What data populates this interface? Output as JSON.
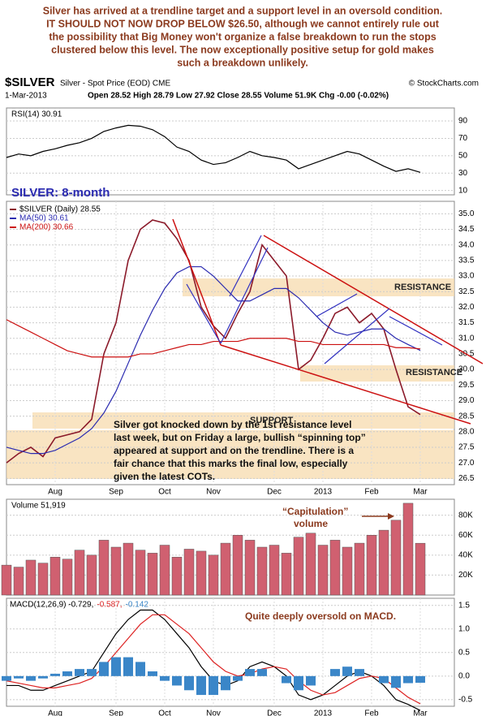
{
  "annotation": [
    "Silver has arrived at a trendline target and a support level in an oversold condition.",
    "IT SHOULD NOT NOW DROP BELOW $26.50, although we cannot entirely rule out",
    "the possibility that Big Money won't organize a false breakdown to run the stops",
    "clustered below this level. The now exceptionally positive setup for gold makes",
    "such a breakdown unlikely."
  ],
  "chart_header": {
    "symbol": "$SILVER",
    "name": "Silver - Spot Price (EOD) CME",
    "credit": "© StockCharts.com",
    "date": "1-Mar-2013",
    "quote": "Open 28.52 High 28.79 Low 27.92 Close 28.55 Volume 51.9K Chg -0.00 (-0.02%)"
  },
  "chart_data": [
    {
      "type": "line",
      "ylim": [
        5,
        105
      ],
      "yticks": [
        10,
        30,
        50,
        70,
        90
      ],
      "grid": true,
      "series": [
        {
          "name": "RSI(14) 30.91",
          "color": "#000000",
          "values": [
            48,
            52,
            50,
            55,
            58,
            62,
            65,
            70,
            78,
            82,
            85,
            84,
            80,
            72,
            60,
            55,
            45,
            40,
            42,
            48,
            55,
            50,
            48,
            45,
            35,
            40,
            45,
            50,
            55,
            52,
            45,
            38,
            32,
            35,
            30.91
          ]
        }
      ]
    },
    {
      "type": "line",
      "title": "SILVER: 8-month",
      "ylim": [
        26.3,
        35.4
      ],
      "yticks": [
        {
          "value": 26.5,
          "label": "26.5"
        },
        {
          "value": 27,
          "label": "27.0"
        },
        27.5,
        {
          "value": 28,
          "label": "28.0"
        },
        28.5,
        {
          "value": 29,
          "label": "29.0"
        },
        29.5,
        {
          "value": 30,
          "label": "30.0"
        },
        30.5,
        {
          "value": 31,
          "label": "31.0"
        },
        31.5,
        {
          "value": 32,
          "label": "32.0"
        },
        32.5,
        {
          "value": 33,
          "label": "33.0"
        },
        33.5,
        {
          "value": 34,
          "label": "34.0"
        },
        34.5,
        {
          "value": 35,
          "label": "35.0"
        }
      ],
      "grid": true,
      "categories": [
        null,
        null,
        null,
        null,
        "Aug",
        null,
        null,
        null,
        null,
        "Sep",
        null,
        null,
        null,
        "Oct",
        null,
        null,
        null,
        "Nov",
        null,
        null,
        null,
        null,
        "Dec",
        null,
        null,
        null,
        "2013",
        null,
        null,
        null,
        "Feb",
        null,
        null,
        null,
        "Mar"
      ],
      "series": [
        {
          "name": "$SILVER (Daily) 28.55",
          "color": "#8b1a2a",
          "values": [
            27.0,
            27.3,
            27.5,
            27.2,
            27.8,
            27.9,
            28.0,
            28.4,
            30.5,
            31.5,
            33.5,
            34.5,
            34.8,
            34.7,
            34.2,
            33.5,
            32.0,
            31.4,
            31.0,
            31.8,
            32.5,
            34.0,
            33.5,
            33.0,
            30.0,
            30.3,
            31.0,
            31.8,
            32.0,
            31.5,
            31.8,
            31.3,
            30.0,
            28.8,
            28.55
          ]
        },
        {
          "name": "MA(50) 30.61",
          "color": "#2a2ab0",
          "values": [
            27.5,
            27.4,
            27.3,
            27.3,
            27.4,
            27.6,
            27.8,
            28.1,
            28.6,
            29.3,
            30.2,
            31.1,
            31.9,
            32.6,
            33.1,
            33.3,
            33.3,
            33.0,
            32.6,
            32.2,
            32.2,
            32.4,
            32.6,
            32.6,
            32.3,
            31.9,
            31.5,
            31.2,
            31.1,
            31.2,
            31.3,
            31.3,
            31.0,
            30.8,
            30.61
          ]
        },
        {
          "name": "MA(200) 30.66",
          "color": "#cc1111",
          "values": [
            31.6,
            31.4,
            31.2,
            31.0,
            30.8,
            30.6,
            30.5,
            30.4,
            30.4,
            30.4,
            30.4,
            30.5,
            30.5,
            30.6,
            30.7,
            30.8,
            30.8,
            30.9,
            30.9,
            30.9,
            31.0,
            31.0,
            31.0,
            31.0,
            30.9,
            30.9,
            30.8,
            30.8,
            30.8,
            30.8,
            30.8,
            30.8,
            30.7,
            30.7,
            30.66
          ]
        }
      ],
      "annotations": [
        "RESISTANCE",
        "RESISTANCE",
        "SUPPORT"
      ],
      "callout": [
        "Silver got knocked down by the 1st resistance level",
        "last week, but on Friday a large, bullish “spinning top”",
        "appeared at support and on the trendline. There is a",
        "fair chance that this marks the final low, especially",
        "given the latest COTs."
      ]
    },
    {
      "type": "bar",
      "ylim": [
        0,
        96000
      ],
      "yticks": [
        {
          "value": 20000,
          "label": "20K"
        },
        {
          "value": 40000,
          "label": "40K"
        },
        {
          "value": 60000,
          "label": "60K"
        },
        {
          "value": 80000,
          "label": "80K"
        }
      ],
      "grid": true,
      "annotation": [
        "“Capitulation”",
        "volume"
      ],
      "series": [
        {
          "name": "Volume 51,919",
          "color": "#d06070",
          "values": [
            30000,
            28000,
            35000,
            32000,
            38000,
            36000,
            45000,
            40000,
            55000,
            48000,
            52000,
            45000,
            42000,
            50000,
            38000,
            46000,
            44000,
            40000,
            52000,
            60000,
            55000,
            48000,
            50000,
            42000,
            58000,
            62000,
            50000,
            55000,
            48000,
            52000,
            60000,
            65000,
            75000,
            92000,
            51919
          ]
        }
      ]
    },
    {
      "type": "line",
      "ylim": [
        -0.64,
        1.65
      ],
      "yticks": [
        -0.5,
        {
          "value": 0,
          "label": "0.0"
        },
        0.5,
        {
          "value": 1,
          "label": "1.0"
        },
        1.5
      ],
      "grid": true,
      "annotation": "Quite deeply oversold on MACD.",
      "categories": [
        null,
        null,
        null,
        null,
        "Aug",
        null,
        null,
        null,
        null,
        "Sep",
        null,
        null,
        null,
        "Oct",
        null,
        null,
        null,
        "Nov",
        null,
        null,
        null,
        null,
        "Dec",
        null,
        null,
        null,
        "2013",
        null,
        null,
        null,
        "Feb",
        null,
        null,
        null,
        "Mar"
      ],
      "series": [
        {
          "name": "MACD(12,26,9) -0.729,",
          "color": "#000000",
          "values": [
            -0.2,
            -0.2,
            -0.3,
            -0.3,
            -0.2,
            -0.1,
            0.0,
            0.1,
            0.5,
            0.9,
            1.2,
            1.4,
            1.4,
            1.2,
            0.9,
            0.6,
            0.2,
            -0.1,
            -0.2,
            -0.1,
            0.2,
            0.3,
            0.2,
            0.0,
            -0.4,
            -0.5,
            -0.4,
            -0.2,
            0.0,
            0.1,
            0.0,
            -0.2,
            -0.5,
            -0.6,
            -0.729
          ]
        },
        {
          "name": "-0.587,",
          "color": "#dd2222",
          "values": [
            -0.1,
            -0.15,
            -0.2,
            -0.25,
            -0.25,
            -0.2,
            -0.15,
            -0.05,
            0.2,
            0.5,
            0.8,
            1.1,
            1.3,
            1.3,
            1.1,
            0.9,
            0.6,
            0.3,
            0.1,
            0.0,
            0.05,
            0.15,
            0.2,
            0.15,
            -0.1,
            -0.3,
            -0.4,
            -0.35,
            -0.2,
            -0.05,
            0.0,
            -0.05,
            -0.25,
            -0.45,
            -0.587
          ]
        },
        {
          "name": "-0.142",
          "color": "#3a86c8",
          "type": "bar",
          "values": [
            -0.1,
            -0.05,
            -0.1,
            -0.05,
            0.05,
            0.1,
            0.15,
            0.15,
            0.3,
            0.4,
            0.4,
            0.3,
            0.1,
            -0.1,
            -0.2,
            -0.3,
            -0.4,
            -0.4,
            -0.3,
            -0.1,
            0.15,
            0.15,
            0,
            -0.15,
            -0.3,
            -0.2,
            0,
            0.15,
            0.2,
            0.15,
            0,
            -0.15,
            -0.25,
            -0.15,
            -0.142
          ]
        }
      ]
    }
  ]
}
